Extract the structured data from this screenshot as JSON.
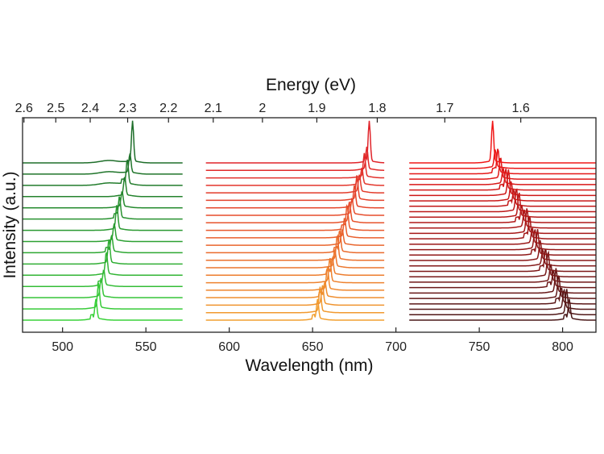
{
  "chart_data": {
    "type": "line",
    "title": "",
    "xlabel": "Wavelength (nm)",
    "ylabel": "Intensity (a.u.)",
    "top_axis_label": "Energy (eV)",
    "xlim": [
      476,
      820
    ],
    "x_ticks": [
      500,
      550,
      600,
      650,
      700,
      750,
      800
    ],
    "x_tick_labels": [
      "500",
      "550",
      "600",
      "650",
      "700",
      "750",
      "800"
    ],
    "top_ticks_eV": [
      2.6,
      2.5,
      2.4,
      2.3,
      2.2,
      2.1,
      2,
      1.9,
      1.8,
      1.7,
      1.6
    ],
    "top_tick_labels": [
      "2.6",
      "2.5",
      "2.4",
      "2.3",
      "2.2",
      "2.1",
      "2",
      "1.9",
      "1.8",
      "1.7",
      "1.6"
    ],
    "y_ticks_shown": false,
    "series_groups": [
      {
        "range_nm": [
          476,
          572
        ],
        "count": 15,
        "peak_start_nm": 520,
        "peak_end_nm": 542,
        "color_bottom": "#3ad23a",
        "color_top": "#1e6e2a"
      },
      {
        "range_nm": [
          586,
          693
        ],
        "count": 22,
        "peak_start_nm": 653,
        "peak_end_nm": 684,
        "color_bottom": "#f2a030",
        "color_top": "#e0242a"
      },
      {
        "range_nm": [
          708,
          820
        ],
        "count": 30,
        "peak_start_nm": 804,
        "peak_end_nm": 758,
        "color_bottom": "#4a1818",
        "color_top": "#f01818"
      }
    ]
  }
}
